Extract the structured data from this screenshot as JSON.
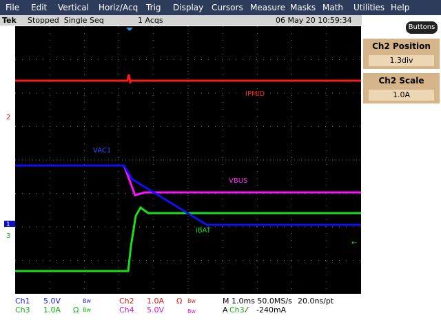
{
  "menu": [
    "File",
    "Edit",
    "Vertical",
    "Horiz/Acq",
    "Trig",
    "Display",
    "Cursors",
    "Measure",
    "Masks",
    "Math",
    "Utilities",
    "Help"
  ],
  "status": {
    "brand": "Tek",
    "state": "Stopped  Single Seq",
    "acqs": "1 Acqs",
    "datetime": "06 May 20 10:59:34"
  },
  "buttons": "Buttons",
  "side_panel": [
    {
      "label": "Ch2 Position",
      "value": "1.3div"
    },
    {
      "label": "Ch2 Scale",
      "value": "1.0A"
    }
  ],
  "trace_labels": {
    "ipmid": "IPMID",
    "vac1": "VAC1",
    "vbus": "VBUS",
    "ibat": "iBAT"
  },
  "channel_markers": {
    "ch2": "2",
    "ch1": "1",
    "ch3": "3"
  },
  "readout": {
    "ch1": {
      "name": "Ch1",
      "scale": "5.0V",
      "bw": "Bw"
    },
    "ch2": {
      "name": "Ch2",
      "scale": "1.0A",
      "ohm": "Ω",
      "bw": "Bw"
    },
    "ch3": {
      "name": "Ch3",
      "scale": "1.0A",
      "ohm": "Ω",
      "bw": "Bw"
    },
    "ch4": {
      "name": "Ch4",
      "scale": "5.0V",
      "bw": "Bw"
    },
    "timebase": "M 1.0ms 50.0MS/s",
    "resolution": "20.0ns/pt",
    "trigger": {
      "mode": "A",
      "source": "Ch3",
      "slope": "⁄",
      "level": "-240mA"
    }
  }
}
